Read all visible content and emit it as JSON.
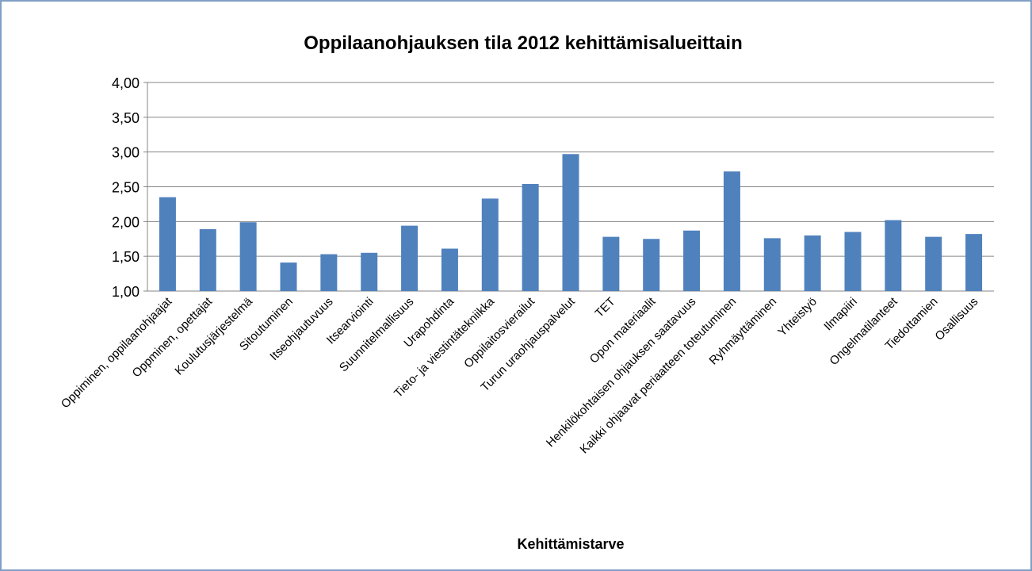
{
  "chart_data": {
    "type": "bar",
    "title": "Oppilaanohjauksen tila 2012 kehittämisalueittain",
    "x_label": "Kehittämistarve",
    "categories": [
      "Oppiminen, oppilaanohjaajat",
      "Oppminen, opettajat",
      "Koulutusjärjestelmä",
      "Sitoutuminen",
      "Itseohjautuvuus",
      "Itsearviointi",
      "Suunnitelmallisuus",
      "Urapohdinta",
      "Tieto- ja viestintätekniikka",
      "Oppilaitosvierailut",
      "Turun uraohjauspalvelut",
      "TET",
      "Opon materiaalit",
      "Henkilökohtaisen ohjauksen saatavuus",
      "Kaikki ohjaavat periaatteen toteutuminen",
      "Ryhmäyttäminen",
      "Yhteistyö",
      "Ilmapiiri",
      "Ongelmatilanteet",
      "Tiedottamien",
      "Osallisuus"
    ],
    "values": [
      2.35,
      1.89,
      1.99,
      1.41,
      1.53,
      1.55,
      1.94,
      1.61,
      2.33,
      2.54,
      2.97,
      1.78,
      1.75,
      1.87,
      2.72,
      1.76,
      1.8,
      1.85,
      2.02,
      1.78,
      1.82
    ],
    "color": "#4f81bd",
    "ylim": [
      1,
      4
    ],
    "yticks": [
      {
        "value": 1,
        "label": "1,00"
      },
      {
        "value": 1.5,
        "label": "1,50"
      },
      {
        "value": 2,
        "label": "2,00"
      },
      {
        "value": 2.5,
        "label": "2,50"
      },
      {
        "value": 3,
        "label": "3,00"
      },
      {
        "value": 3.5,
        "label": "3,50"
      },
      {
        "value": 4,
        "label": "4,00"
      }
    ],
    "grid": true
  }
}
